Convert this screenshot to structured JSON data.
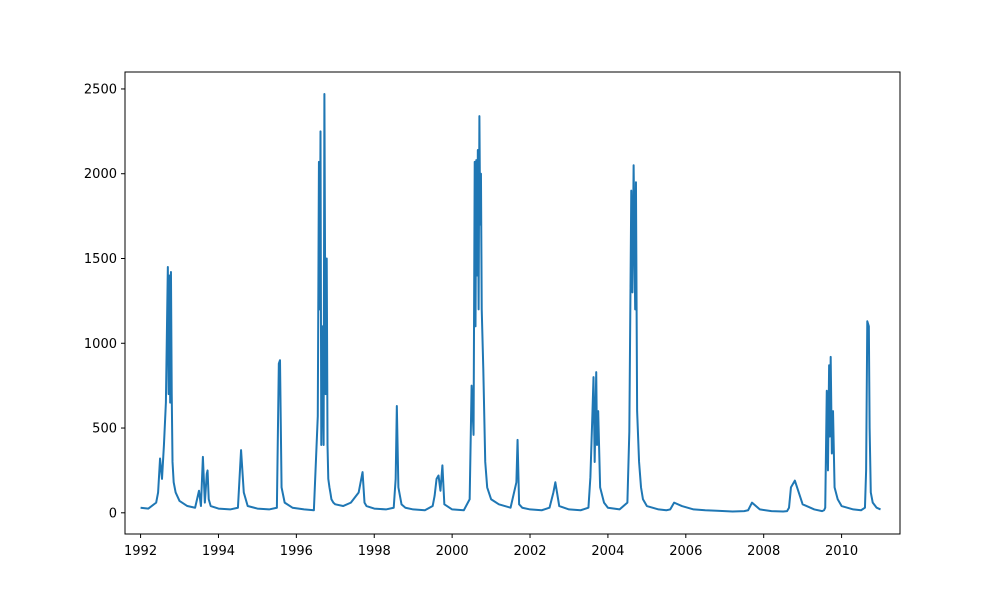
{
  "chart_data": {
    "type": "line",
    "title": "",
    "xlabel": "",
    "ylabel": "",
    "xlim": [
      1991.6,
      2011.5
    ],
    "ylim": [
      -125,
      2600
    ],
    "x_ticks": [
      1992,
      1994,
      1996,
      1998,
      2000,
      2002,
      2004,
      2006,
      2008,
      2010
    ],
    "x_tick_labels": [
      "1992",
      "1994",
      "1996",
      "1998",
      "2000",
      "2002",
      "2004",
      "2006",
      "2008",
      "2010"
    ],
    "y_ticks": [
      0,
      500,
      1000,
      1500,
      2000,
      2500
    ],
    "y_tick_labels": [
      "0",
      "500",
      "1000",
      "1500",
      "2000",
      "2500"
    ],
    "grid": false,
    "legend": "none",
    "series": [
      {
        "color": "#1f77b4",
        "x": [
          1992.0,
          1992.2,
          1992.4,
          1992.45,
          1992.5,
          1992.55,
          1992.6,
          1992.65,
          1992.7,
          1992.72,
          1992.74,
          1992.76,
          1992.78,
          1992.8,
          1992.82,
          1992.85,
          1992.9,
          1993.0,
          1993.2,
          1993.4,
          1993.5,
          1993.55,
          1993.6,
          1993.65,
          1993.7,
          1993.72,
          1993.75,
          1993.8,
          1994.0,
          1994.3,
          1994.5,
          1994.58,
          1994.65,
          1994.75,
          1995.0,
          1995.3,
          1995.5,
          1995.55,
          1995.58,
          1995.62,
          1995.7,
          1995.9,
          1996.2,
          1996.45,
          1996.55,
          1996.58,
          1996.6,
          1996.62,
          1996.64,
          1996.66,
          1996.68,
          1996.7,
          1996.72,
          1996.75,
          1996.78,
          1996.8,
          1996.82,
          1996.85,
          1996.88,
          1996.9,
          1996.95,
          1997.0,
          1997.2,
          1997.4,
          1997.6,
          1997.7,
          1997.75,
          1997.8,
          1998.0,
          1998.3,
          1998.5,
          1998.55,
          1998.58,
          1998.62,
          1998.7,
          1998.8,
          1999.0,
          1999.3,
          1999.5,
          1999.55,
          1999.6,
          1999.65,
          1999.7,
          1999.75,
          1999.8,
          2000.0,
          2000.3,
          2000.45,
          2000.5,
          2000.55,
          2000.58,
          2000.6,
          2000.62,
          2000.64,
          2000.66,
          2000.68,
          2000.7,
          2000.72,
          2000.74,
          2000.76,
          2000.8,
          2000.85,
          2000.9,
          2001.0,
          2001.2,
          2001.5,
          2001.65,
          2001.68,
          2001.72,
          2001.8,
          2002.0,
          2002.3,
          2002.5,
          2002.6,
          2002.65,
          2002.75,
          2003.0,
          2003.3,
          2003.5,
          2003.55,
          2003.6,
          2003.63,
          2003.66,
          2003.7,
          2003.72,
          2003.75,
          2003.8,
          2003.9,
          2004.0,
          2004.3,
          2004.5,
          2004.55,
          2004.6,
          2004.63,
          2004.66,
          2004.7,
          2004.72,
          2004.75,
          2004.8,
          2004.85,
          2004.9,
          2005.0,
          2005.3,
          2005.5,
          2005.6,
          2005.7,
          2005.9,
          2006.2,
          2006.5,
          2006.8,
          2007.0,
          2007.2,
          2007.5,
          2007.6,
          2007.7,
          2007.9,
          2008.2,
          2008.5,
          2008.6,
          2008.65,
          2008.7,
          2008.8,
          2009.0,
          2009.3,
          2009.5,
          2009.55,
          2009.58,
          2009.62,
          2009.65,
          2009.68,
          2009.7,
          2009.72,
          2009.75,
          2009.78,
          2009.82,
          2009.9,
          2010.0,
          2010.3,
          2010.5,
          2010.6,
          2010.63,
          2010.66,
          2010.7,
          2010.72,
          2010.75,
          2010.8,
          2010.9,
          2011.0
        ],
        "y": [
          30,
          25,
          60,
          120,
          320,
          200,
          400,
          650,
          1450,
          700,
          1400,
          650,
          1420,
          700,
          300,
          180,
          120,
          70,
          40,
          30,
          130,
          40,
          330,
          60,
          230,
          250,
          80,
          40,
          25,
          20,
          30,
          370,
          120,
          40,
          25,
          20,
          30,
          880,
          900,
          150,
          60,
          30,
          20,
          15,
          570,
          2070,
          1200,
          2250,
          400,
          800,
          1100,
          400,
          2470,
          700,
          1500,
          400,
          200,
          150,
          110,
          80,
          60,
          50,
          40,
          60,
          120,
          240,
          60,
          40,
          25,
          20,
          30,
          200,
          630,
          150,
          50,
          30,
          20,
          15,
          40,
          100,
          200,
          220,
          130,
          280,
          50,
          20,
          15,
          80,
          750,
          460,
          2070,
          1100,
          2080,
          1400,
          2140,
          1200,
          2340,
          1700,
          2000,
          1200,
          850,
          300,
          150,
          80,
          50,
          30,
          180,
          430,
          50,
          30,
          20,
          15,
          30,
          120,
          180,
          40,
          20,
          15,
          30,
          210,
          570,
          800,
          300,
          830,
          400,
          600,
          150,
          60,
          30,
          20,
          60,
          480,
          1900,
          1300,
          2050,
          1200,
          1950,
          600,
          300,
          150,
          80,
          40,
          20,
          15,
          20,
          60,
          40,
          20,
          15,
          12,
          10,
          8,
          10,
          15,
          60,
          20,
          10,
          8,
          10,
          30,
          150,
          190,
          50,
          20,
          10,
          15,
          30,
          720,
          250,
          870,
          450,
          920,
          350,
          600,
          150,
          80,
          40,
          20,
          15,
          30,
          250,
          1130,
          1100,
          500,
          120,
          60,
          30,
          20
        ]
      }
    ]
  }
}
